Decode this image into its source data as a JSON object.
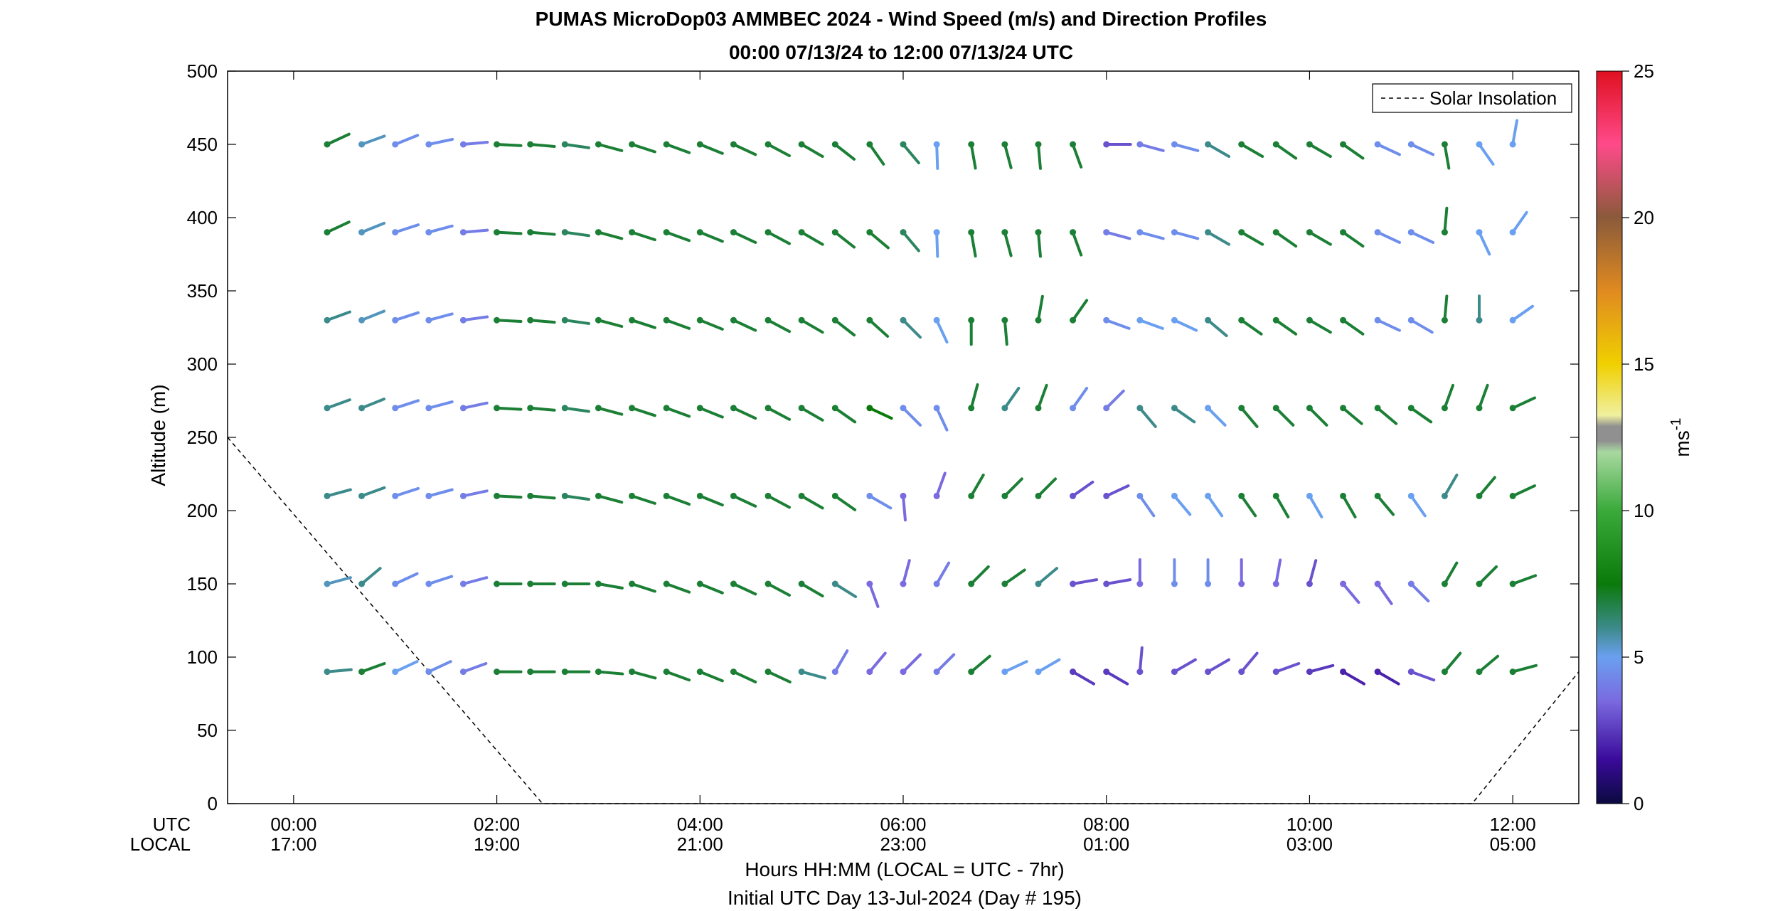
{
  "chart_data": {
    "type": "wind-barb-profile",
    "title": "PUMAS MicroDop03 AMMBEC 2024 - Wind Speed (m/s) and Direction Profiles",
    "subtitle": "00:00 07/13/24 to 12:00 07/13/24  UTC",
    "ylabel": "Altitude (m)",
    "xlabel": "Hours HH:MM  (LOCAL = UTC - 7hr)",
    "xlabel2": "Initial UTC Day 13-Jul-2024 (Day # 195)",
    "utc_row_label": "UTC",
    "local_row_label": "LOCAL",
    "colorbar_label": "ms",
    "colorbar_label_exp": "-1",
    "legend": {
      "entry": "Solar Insolation",
      "placement": "top-right",
      "style": "dashed"
    },
    "ylim": [
      0,
      500
    ],
    "yticks": [
      "0",
      "50",
      "100",
      "150",
      "200",
      "250",
      "300",
      "350",
      "400",
      "450",
      "500"
    ],
    "xlim_hours": [
      -0.65,
      12.65
    ],
    "xticks": [
      {
        "hour": 0,
        "utc": "00:00",
        "local": "17:00"
      },
      {
        "hour": 2,
        "utc": "02:00",
        "local": "19:00"
      },
      {
        "hour": 4,
        "utc": "04:00",
        "local": "21:00"
      },
      {
        "hour": 6,
        "utc": "06:00",
        "local": "23:00"
      },
      {
        "hour": 8,
        "utc": "08:00",
        "local": "01:00"
      },
      {
        "hour": 10,
        "utc": "10:00",
        "local": "03:00"
      },
      {
        "hour": 12,
        "utc": "12:00",
        "local": "05:00"
      }
    ],
    "colorbar": {
      "range": [
        0,
        25
      ],
      "ticks": [
        "0",
        "5",
        "10",
        "15",
        "20",
        "25"
      ]
    },
    "insolation_curve_hours_relative": [
      [
        -0.65,
        0.5
      ],
      [
        2.45,
        0.0
      ],
      [
        11.6,
        0.0
      ],
      [
        12.65,
        0.18
      ]
    ],
    "altitudes_m": [
      450,
      390,
      330,
      270,
      210,
      150,
      90
    ],
    "times_hours": [
      0.33,
      0.67,
      1.0,
      1.33,
      1.67,
      2.0,
      2.33,
      2.67,
      3.0,
      3.33,
      3.67,
      4.0,
      4.33,
      4.67,
      5.0,
      5.33,
      5.67,
      6.0,
      6.33,
      6.67,
      7.0,
      7.33,
      7.67,
      8.0,
      8.33,
      8.67,
      9.0,
      9.33,
      9.67,
      10.0,
      10.33,
      10.67,
      11.0,
      11.33,
      11.67,
      12.0
    ],
    "profiles": [
      {
        "altitude": 450,
        "speeds": [
          7,
          5.5,
          4.5,
          4.5,
          4,
          7,
          7,
          6.5,
          7,
          7,
          7,
          7,
          7,
          7,
          7,
          7,
          7,
          6.5,
          5,
          7,
          7,
          7,
          7,
          3,
          4,
          4.5,
          6,
          7,
          7,
          7,
          7,
          4.5,
          4.5,
          7,
          5,
          5
        ],
        "angles": [
          25,
          20,
          22,
          12,
          5,
          -3,
          -5,
          -8,
          -15,
          -18,
          -20,
          -22,
          -25,
          -28,
          -30,
          -38,
          -55,
          -50,
          -88,
          -80,
          -75,
          -85,
          -70,
          0,
          -15,
          -15,
          -30,
          -30,
          -35,
          -30,
          -35,
          -25,
          -25,
          -80,
          -55,
          80
        ]
      },
      {
        "altitude": 390,
        "speeds": [
          7,
          5.5,
          4.5,
          4.5,
          4,
          7,
          7,
          6.5,
          7,
          7,
          7,
          7,
          7,
          7,
          7,
          7,
          7,
          6.5,
          5,
          7,
          7,
          7,
          7,
          4,
          4.5,
          4.5,
          6,
          7,
          7,
          7,
          7,
          4.5,
          4.5,
          7,
          5,
          5
        ],
        "angles": [
          25,
          22,
          18,
          15,
          5,
          -3,
          -5,
          -8,
          -15,
          -18,
          -20,
          -22,
          -25,
          -28,
          -30,
          -38,
          -40,
          -50,
          -88,
          -80,
          -75,
          -85,
          -70,
          -15,
          -15,
          -15,
          -30,
          -30,
          -35,
          -30,
          -35,
          -25,
          -25,
          85,
          -65,
          55
        ]
      },
      {
        "altitude": 330,
        "speeds": [
          6,
          5.5,
          4.5,
          4.5,
          4,
          7,
          7,
          6.5,
          7,
          7,
          7,
          7,
          7,
          7,
          7,
          7,
          7,
          6,
          5,
          7,
          7,
          7,
          7,
          4.5,
          5,
          5,
          6,
          7,
          7,
          7,
          7,
          4.5,
          4.5,
          7,
          6,
          5
        ],
        "angles": [
          20,
          22,
          18,
          15,
          8,
          -3,
          -5,
          -8,
          -15,
          -18,
          -20,
          -22,
          -25,
          -28,
          -30,
          -38,
          -42,
          -45,
          -65,
          -90,
          -85,
          80,
          55,
          -20,
          -20,
          -25,
          -40,
          -35,
          -35,
          -30,
          -35,
          -25,
          -30,
          85,
          90,
          35
        ]
      },
      {
        "altitude": 270,
        "speeds": [
          6,
          6,
          4.5,
          4.5,
          4,
          7,
          7,
          6.5,
          7,
          7,
          7,
          7,
          7,
          7,
          7,
          7,
          7.5,
          4.5,
          4.5,
          7,
          6,
          7,
          4.5,
          4,
          6,
          6,
          5,
          7,
          7,
          7,
          7,
          7,
          7,
          7,
          7,
          7
        ],
        "angles": [
          20,
          22,
          18,
          15,
          12,
          -3,
          -5,
          -8,
          -15,
          -18,
          -20,
          -22,
          -25,
          -28,
          -30,
          -35,
          -25,
          -45,
          -65,
          75,
          55,
          70,
          55,
          45,
          -50,
          -35,
          -45,
          -50,
          -45,
          -45,
          -40,
          -40,
          -35,
          70,
          70,
          25
        ]
      },
      {
        "altitude": 210,
        "speeds": [
          6,
          6,
          4.5,
          4.5,
          4,
          7,
          7,
          6.5,
          7,
          7,
          7,
          7,
          7,
          7,
          7,
          7,
          4.5,
          3.5,
          3.5,
          7,
          7,
          7,
          3,
          3,
          4.5,
          5,
          5,
          7,
          7,
          5,
          7,
          7,
          5,
          6,
          7,
          7
        ],
        "angles": [
          15,
          20,
          18,
          15,
          12,
          -3,
          -5,
          -8,
          -15,
          -18,
          -20,
          -22,
          -25,
          -28,
          -30,
          -35,
          -30,
          -85,
          70,
          60,
          45,
          45,
          35,
          25,
          -55,
          -50,
          -55,
          -55,
          -60,
          -60,
          -60,
          -50,
          -55,
          60,
          50,
          25
        ]
      },
      {
        "altitude": 150,
        "speeds": [
          5.5,
          6,
          4.5,
          4.5,
          4,
          7,
          7,
          7,
          7,
          7,
          7,
          7,
          7,
          7,
          7,
          6,
          3.5,
          3.5,
          4,
          7,
          7,
          6,
          3,
          3,
          3.5,
          4.5,
          4.5,
          3.5,
          3.5,
          3,
          3.5,
          3.5,
          4,
          7,
          7,
          7
        ],
        "angles": [
          15,
          40,
          25,
          18,
          15,
          0,
          0,
          0,
          -10,
          -18,
          -20,
          -22,
          -25,
          -28,
          -30,
          -32,
          -70,
          75,
          60,
          45,
          35,
          40,
          10,
          10,
          90,
          90,
          90,
          90,
          80,
          75,
          -50,
          -55,
          -45,
          60,
          45,
          20
        ]
      },
      {
        "altitude": 90,
        "speeds": [
          6,
          7,
          5,
          4.5,
          4,
          7,
          7,
          7,
          7,
          7,
          7,
          7,
          7,
          7,
          6,
          4,
          3.5,
          3.5,
          4,
          7,
          5,
          5,
          2.5,
          2.5,
          3,
          3,
          3,
          3,
          3,
          2.5,
          2,
          2,
          3,
          7,
          7,
          7
        ],
        "angles": [
          5,
          20,
          25,
          25,
          20,
          0,
          0,
          0,
          -5,
          -15,
          -20,
          -22,
          -25,
          -25,
          -15,
          60,
          50,
          45,
          45,
          40,
          25,
          30,
          -30,
          -30,
          85,
          30,
          30,
          50,
          20,
          15,
          -30,
          -30,
          -20,
          50,
          40,
          15
        ]
      }
    ]
  }
}
